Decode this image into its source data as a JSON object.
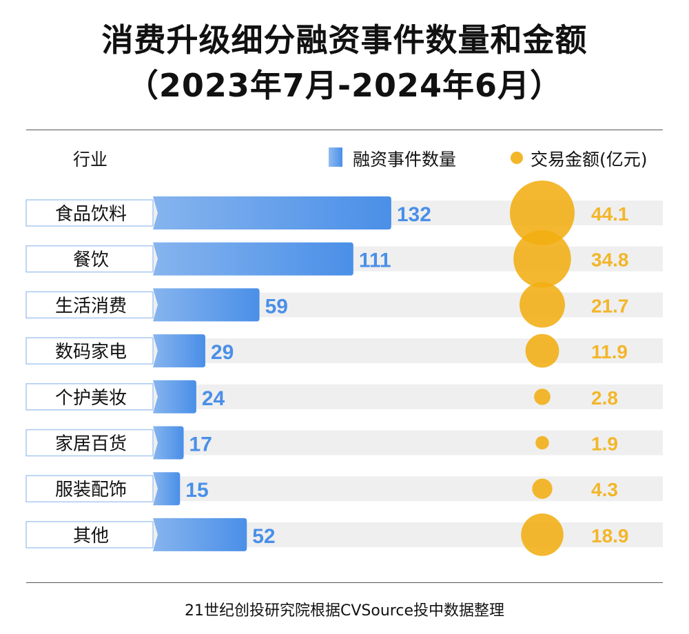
{
  "title_line1": "消费升级细分融资事件数量和金额",
  "title_line2": "（2023年7月-2024年6月）",
  "header": {
    "category_label": "行业"
  },
  "chart_data": {
    "type": "bar",
    "categories": [
      "食品饮料",
      "餐饮",
      "生活消费",
      "数码家电",
      "个护美妆",
      "家居百货",
      "服装配饰",
      "其他"
    ],
    "series": [
      {
        "name": "融资事件数量",
        "type": "bar",
        "values": [
          132,
          111,
          59,
          29,
          24,
          17,
          15,
          52
        ],
        "color": "#4a8fe8"
      },
      {
        "name": "交易金额(亿元)",
        "type": "bubble",
        "values": [
          44.1,
          34.8,
          21.7,
          11.9,
          2.8,
          1.9,
          4.3,
          18.9
        ],
        "color": "#f3b62a"
      }
    ],
    "legend_placement": "top-right",
    "grid": false
  },
  "source": "21世纪创投研究院根据CVSource投中数据整理"
}
